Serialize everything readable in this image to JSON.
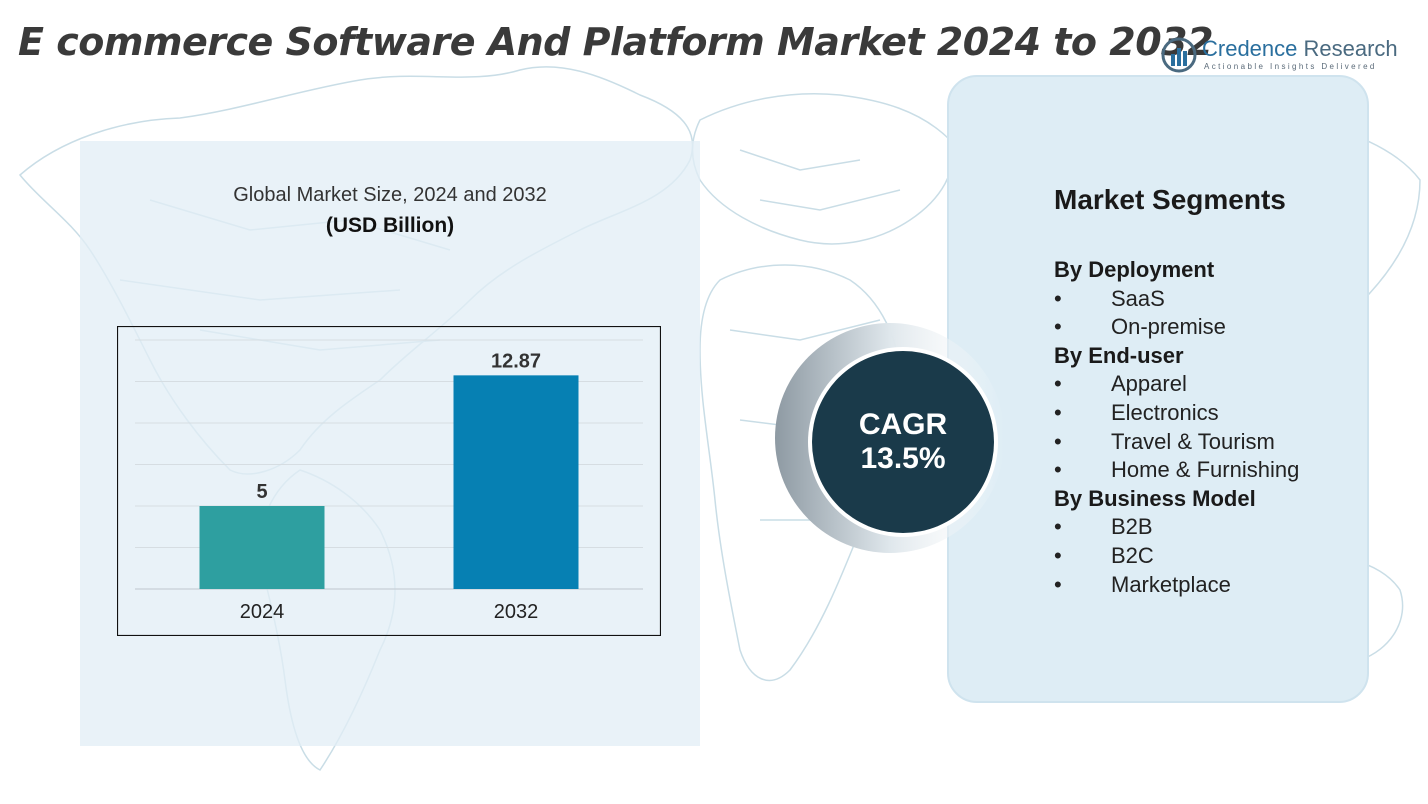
{
  "header": {
    "title": "E commerce Software And Platform Market 2024 to 2032"
  },
  "logo": {
    "brand_part1": "Credence",
    "brand_part2": " Research",
    "tagline": "Actionable Insights Delivered",
    "icon": "credence-logo-icon"
  },
  "chart_data": {
    "type": "bar",
    "title": "Global Market Size, 2024 and 2032",
    "unit": "(USD Billion)",
    "categories": [
      "2024",
      "2032"
    ],
    "values": [
      5,
      12.87
    ],
    "value_labels": [
      "5",
      "12.87"
    ],
    "colors": [
      "#2e9fa0",
      "#0680b3"
    ],
    "ylim": [
      0,
      15
    ],
    "grid": true,
    "xlabel": "",
    "ylabel": ""
  },
  "cagr": {
    "label": "CAGR",
    "value": "13.5%"
  },
  "segments": {
    "title": "Market Segments",
    "groups": [
      {
        "name": "By Deployment",
        "items": [
          "SaaS",
          "On-premise"
        ]
      },
      {
        "name": "By End-user",
        "items": [
          "Apparel",
          "Electronics",
          "Travel & Tourism",
          "Home & Furnishing"
        ]
      },
      {
        "name": "By Business Model",
        "items": [
          "B2B",
          "B2C",
          "Marketplace"
        ]
      }
    ],
    "bullet": "•"
  },
  "colors": {
    "map_stroke": "#c9dde6",
    "panel_bg": "#deedf5",
    "cagr_circle": "#1a3a4a"
  }
}
